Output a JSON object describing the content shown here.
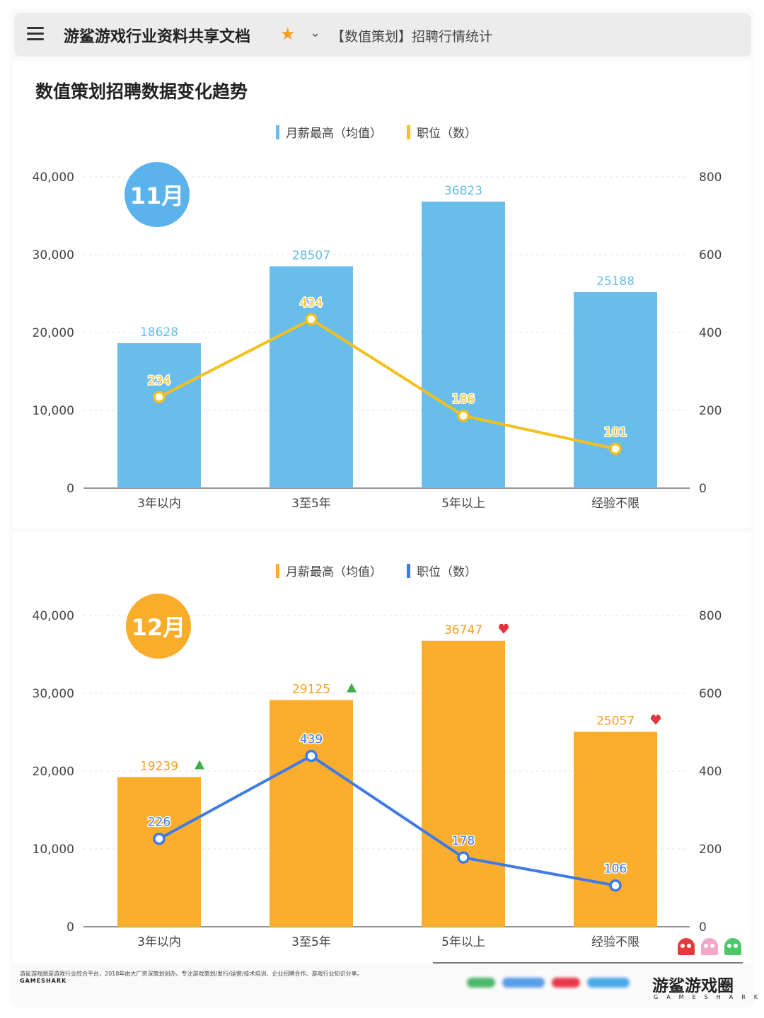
{
  "header": {
    "app_title": "游鲨游戏行业资料共享文档",
    "doc_title": "【数值策划】招聘行情统计",
    "icons": [
      "menu-icon",
      "star-icon",
      "chevron-down-icon"
    ]
  },
  "page_heading": "数值策划招聘数据变化趋势",
  "chart_data": [
    {
      "type": "bar",
      "month_label": "11月",
      "categories": [
        "3年以内",
        "3至5年",
        "5年以上",
        "经验不限"
      ],
      "series": [
        {
          "name": "月薪最高（均值）",
          "type": "bar",
          "axis": "left",
          "color": "#69bdeb",
          "values": [
            18628,
            28507,
            36823,
            25188
          ]
        },
        {
          "name": "职位（数）",
          "type": "line",
          "axis": "right",
          "color": "#f3c01c",
          "values": [
            234,
            434,
            186,
            101
          ]
        }
      ],
      "left_axis": {
        "range": [
          0,
          40000
        ],
        "ticks": [
          "0",
          "10,000",
          "20,000",
          "30,000",
          "40,000"
        ]
      },
      "right_axis": {
        "range": [
          0,
          800
        ],
        "ticks": [
          "0",
          "200",
          "400",
          "600",
          "800"
        ]
      },
      "legend_position": "top-center",
      "grid": true,
      "bar_label_color": "#69bdeb",
      "line_label_color": "#f3c01c"
    },
    {
      "type": "bar",
      "month_label": "12月",
      "categories": [
        "3年以内",
        "3至5年",
        "5年以上",
        "经验不限"
      ],
      "series": [
        {
          "name": "月薪最高（均值）",
          "type": "bar",
          "axis": "left",
          "color": "#fbae2e",
          "values": [
            19239,
            29125,
            36747,
            25057
          ],
          "trend": [
            "up",
            "up",
            "down",
            "down"
          ]
        },
        {
          "name": "职位（数）",
          "type": "line",
          "axis": "right",
          "color": "#3f7ae6",
          "values": [
            226,
            439,
            178,
            106
          ]
        }
      ],
      "left_axis": {
        "range": [
          0,
          40000
        ],
        "ticks": [
          "0",
          "10,000",
          "20,000",
          "30,000",
          "40,000"
        ]
      },
      "right_axis": {
        "range": [
          0,
          800
        ],
        "ticks": [
          "0",
          "200",
          "400",
          "600",
          "800"
        ]
      },
      "legend_position": "top-center",
      "grid": true,
      "bar_label_color": "#f5a020",
      "line_label_color": "#3f7ae6",
      "trend_colors": {
        "up": "#3fae49",
        "down": "#e0343e"
      }
    }
  ],
  "footer": {
    "note": "游鲨游戏圈是游戏行业综合平台，2018年由大厂资深策划创办。专注游戏策划/发行/运营/技术培训、企业招聘合作、游戏行业知识分享。",
    "brand_en_small": "GAMESHARK",
    "brand_logo": "游鲨游戏圈",
    "brand_logo_en": "GAMESHARK",
    "mascot_colors": [
      "#e23b3b",
      "#f2a6c8",
      "#4cc86a"
    ],
    "partner_colors": [
      "#4cb86a",
      "#5a9de8",
      "#e8384a",
      "#4aa8e8"
    ]
  }
}
